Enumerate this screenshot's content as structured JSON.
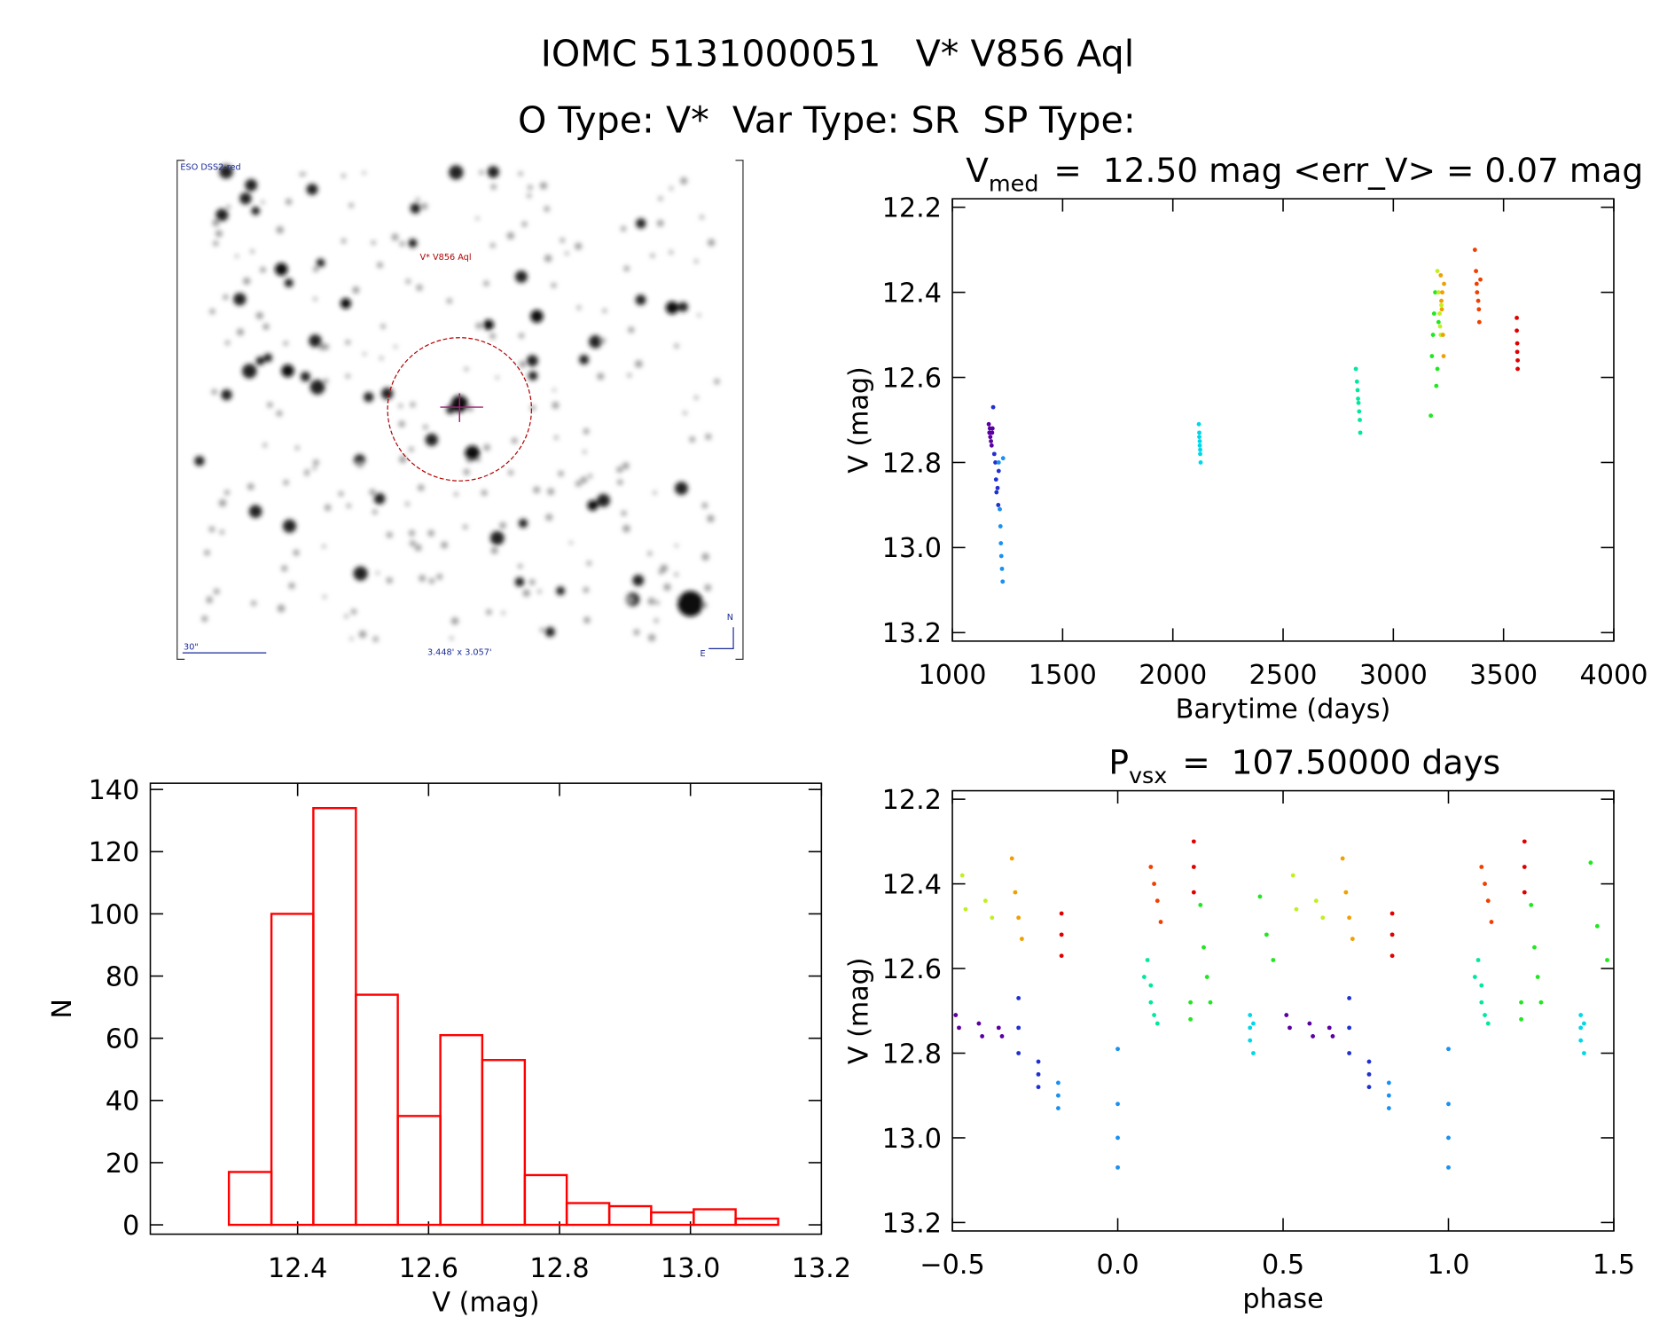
{
  "header": {
    "line1": "IOMC 5131000051   V* V856 Aql",
    "line2": "O Type: V*  Var Type: SR  SP Type:"
  },
  "image": {
    "survey": "ESO DSS2-red",
    "target": "V* V856 Aql",
    "scale": "30\"",
    "size": "3.448' x 3.057'",
    "north": "N",
    "east": "E"
  },
  "chart_data": [
    {
      "type": "histogram",
      "xlabel": "V (mag)",
      "ylabel": "N",
      "color": "#ff0000",
      "bins": [
        12.295,
        12.36,
        12.424,
        12.489,
        12.553,
        12.618,
        12.682,
        12.747,
        12.811,
        12.876,
        12.94,
        13.005,
        13.069,
        13.134
      ],
      "values": [
        17,
        100,
        134,
        74,
        35,
        61,
        53,
        16,
        7,
        6,
        4,
        5,
        2
      ],
      "xlim": [
        12.175,
        13.2
      ],
      "ylim": [
        -3,
        142
      ],
      "xticks": [
        12.4,
        12.6,
        12.8,
        {
          "value": 13,
          "label": "13.0"
        },
        13.2
      ],
      "yticks": [
        0,
        20,
        40,
        60,
        80,
        100,
        120,
        140
      ]
    },
    {
      "type": "scatter",
      "title_symbol": "V",
      "title_subscript": "med",
      "title_rest": "=  12.50 mag <err_V> = 0.07 mag",
      "xlabel": "Barytime (days)",
      "ylabel": "V (mag)",
      "xlim": [
        1000,
        4000
      ],
      "ylim": [
        13.22,
        12.18
      ],
      "xticks": [
        1000,
        1500,
        2000,
        2500,
        3000,
        3500,
        4000
      ],
      "yticks": [
        12.2,
        12.4,
        12.6,
        12.8,
        {
          "value": 13,
          "label": "13.0"
        },
        13.2
      ],
      "series": [
        {
          "color": "#5a00a0",
          "x": [
            1165,
            1168,
            1170,
            1172,
            1175,
            1178,
            1180,
            1182
          ],
          "values": [
            12.71,
            12.73,
            12.72,
            12.74,
            12.75,
            12.76,
            12.73,
            12.72
          ]
        },
        {
          "color": "#2030d0",
          "x": [
            1185,
            1190,
            1195,
            1198,
            1200,
            1205,
            1208,
            1210
          ],
          "values": [
            12.67,
            12.78,
            12.8,
            12.84,
            12.87,
            12.86,
            12.9,
            12.82
          ]
        },
        {
          "color": "#1a90f0",
          "x": [
            1210,
            1215,
            1218,
            1220,
            1222,
            1225,
            1228,
            1230
          ],
          "values": [
            12.8,
            12.91,
            12.95,
            12.99,
            13.02,
            13.05,
            13.08,
            12.79
          ]
        },
        {
          "color": "#00d8e8",
          "x": [
            2118,
            2120,
            2120,
            2122,
            2122,
            2124,
            2124,
            2126
          ],
          "values": [
            12.71,
            12.73,
            12.74,
            12.75,
            12.76,
            12.77,
            12.78,
            12.8
          ]
        },
        {
          "color": "#00e8a0",
          "x": [
            2830,
            2835,
            2838,
            2840,
            2842,
            2845,
            2848,
            2850
          ],
          "values": [
            12.58,
            12.61,
            12.63,
            12.65,
            12.66,
            12.68,
            12.7,
            12.73
          ]
        },
        {
          "color": "#20e820",
          "x": [
            3170,
            3175,
            3180,
            3185,
            3190,
            3195,
            3200,
            3205
          ],
          "values": [
            12.69,
            12.55,
            12.5,
            12.45,
            12.4,
            12.62,
            12.58,
            12.47
          ]
        },
        {
          "color": "#c0f020",
          "x": [
            3200,
            3205,
            3210,
            3212,
            3215,
            3218
          ],
          "values": [
            12.35,
            12.4,
            12.45,
            12.48,
            12.5,
            12.43
          ]
        },
        {
          "color": "#f0a000",
          "x": [
            3215,
            3218,
            3220,
            3222,
            3225,
            3228,
            3230
          ],
          "values": [
            12.36,
            12.42,
            12.44,
            12.4,
            12.5,
            12.55,
            12.38
          ]
        },
        {
          "color": "#f04000",
          "x": [
            3370,
            3375,
            3378,
            3380,
            3385,
            3388,
            3390,
            3395
          ],
          "values": [
            12.3,
            12.35,
            12.38,
            12.4,
            12.42,
            12.44,
            12.47,
            12.37
          ]
        },
        {
          "color": "#e00000",
          "x": [
            3560,
            3560,
            3562,
            3562,
            3564,
            3564
          ],
          "values": [
            12.46,
            12.49,
            12.52,
            12.54,
            12.56,
            12.58
          ]
        }
      ]
    },
    {
      "type": "scatter",
      "title_symbol": "P",
      "title_subscript": "vsx",
      "title_rest": "=  107.50000 days",
      "xlabel": "phase",
      "ylabel": "V (mag)",
      "xlim": [
        -0.5,
        1.5
      ],
      "ylim": [
        13.22,
        12.18
      ],
      "xticks": [
        {
          "value": -0.5,
          "label": "−0.5"
        },
        {
          "value": 0,
          "label": "0.0"
        },
        0.5,
        {
          "value": 1,
          "label": "1.0"
        },
        1.5
      ],
      "yticks": [
        12.2,
        12.4,
        12.6,
        12.8,
        {
          "value": 13,
          "label": "13.0"
        },
        13.2
      ],
      "series": [
        {
          "color": "#5a00a0",
          "x": [
            -0.49,
            -0.48,
            -0.42,
            -0.41,
            -0.36,
            -0.35,
            0.51,
            0.52,
            0.58,
            0.59,
            0.64,
            0.65
          ],
          "values": [
            12.71,
            12.74,
            12.73,
            12.76,
            12.74,
            12.76,
            12.71,
            12.74,
            12.73,
            12.76,
            12.74,
            12.76
          ]
        },
        {
          "color": "#2030d0",
          "x": [
            -0.3,
            -0.3,
            -0.3,
            -0.24,
            -0.24,
            -0.24,
            0.7,
            0.7,
            0.7,
            0.76,
            0.76,
            0.76
          ],
          "values": [
            12.67,
            12.74,
            12.8,
            12.82,
            12.85,
            12.88,
            12.67,
            12.74,
            12.8,
            12.82,
            12.85,
            12.88
          ]
        },
        {
          "color": "#1a90f0",
          "x": [
            -0.18,
            -0.18,
            -0.18,
            0,
            0,
            0,
            0,
            0.82,
            0.82,
            0.82,
            1,
            1,
            1,
            1
          ],
          "values": [
            12.87,
            12.9,
            12.93,
            12.79,
            12.92,
            13,
            13.07,
            12.87,
            12.9,
            12.93,
            12.79,
            12.92,
            13,
            13.07
          ]
        },
        {
          "color": "#00d8e8",
          "x": [
            0.4,
            0.4,
            0.4,
            0.41,
            0.41,
            1.4,
            1.4,
            1.4,
            1.41,
            1.41
          ],
          "values": [
            12.71,
            12.74,
            12.77,
            12.73,
            12.8,
            12.71,
            12.74,
            12.77,
            12.73,
            12.8
          ]
        },
        {
          "color": "#00e8a0",
          "x": [
            0.08,
            0.09,
            0.1,
            0.1,
            0.11,
            0.12,
            1.08,
            1.09,
            1.1,
            1.1,
            1.11,
            1.12
          ],
          "values": [
            12.62,
            12.58,
            12.64,
            12.68,
            12.71,
            12.73,
            12.62,
            12.58,
            12.64,
            12.68,
            12.71,
            12.73
          ]
        },
        {
          "color": "#20e820",
          "x": [
            0.22,
            0.22,
            0.25,
            0.26,
            0.27,
            0.28,
            0.43,
            0.45,
            0.47,
            1.22,
            1.22,
            1.25,
            1.26,
            1.27,
            1.28,
            1.43,
            1.45,
            1.48
          ],
          "values": [
            12.68,
            12.72,
            12.45,
            12.55,
            12.62,
            12.68,
            12.43,
            12.52,
            12.58,
            12.68,
            12.72,
            12.45,
            12.55,
            12.62,
            12.68,
            12.35,
            12.5,
            12.58
          ]
        },
        {
          "color": "#c0f020",
          "x": [
            -0.47,
            -0.46,
            -0.4,
            -0.38,
            0.53,
            0.54,
            0.6,
            0.62
          ],
          "values": [
            12.38,
            12.46,
            12.44,
            12.48,
            12.38,
            12.46,
            12.44,
            12.48
          ]
        },
        {
          "color": "#f0a000",
          "x": [
            -0.32,
            -0.31,
            -0.3,
            -0.29,
            0.68,
            0.69,
            0.7,
            0.71
          ],
          "values": [
            12.34,
            12.42,
            12.48,
            12.53,
            12.34,
            12.42,
            12.48,
            12.53
          ]
        },
        {
          "color": "#f04000",
          "x": [
            0.1,
            0.11,
            0.12,
            0.13,
            1.1,
            1.11,
            1.12,
            1.13
          ],
          "values": [
            12.36,
            12.4,
            12.44,
            12.49,
            12.36,
            12.4,
            12.44,
            12.49
          ]
        },
        {
          "color": "#e00000",
          "x": [
            -0.17,
            -0.17,
            -0.17,
            0.23,
            0.23,
            0.23,
            0.83,
            0.83,
            0.83,
            1.23,
            1.23,
            1.23
          ],
          "values": [
            12.47,
            12.52,
            12.57,
            12.3,
            12.36,
            12.42,
            12.47,
            12.52,
            12.57,
            12.3,
            12.36,
            12.42
          ]
        }
      ]
    }
  ]
}
